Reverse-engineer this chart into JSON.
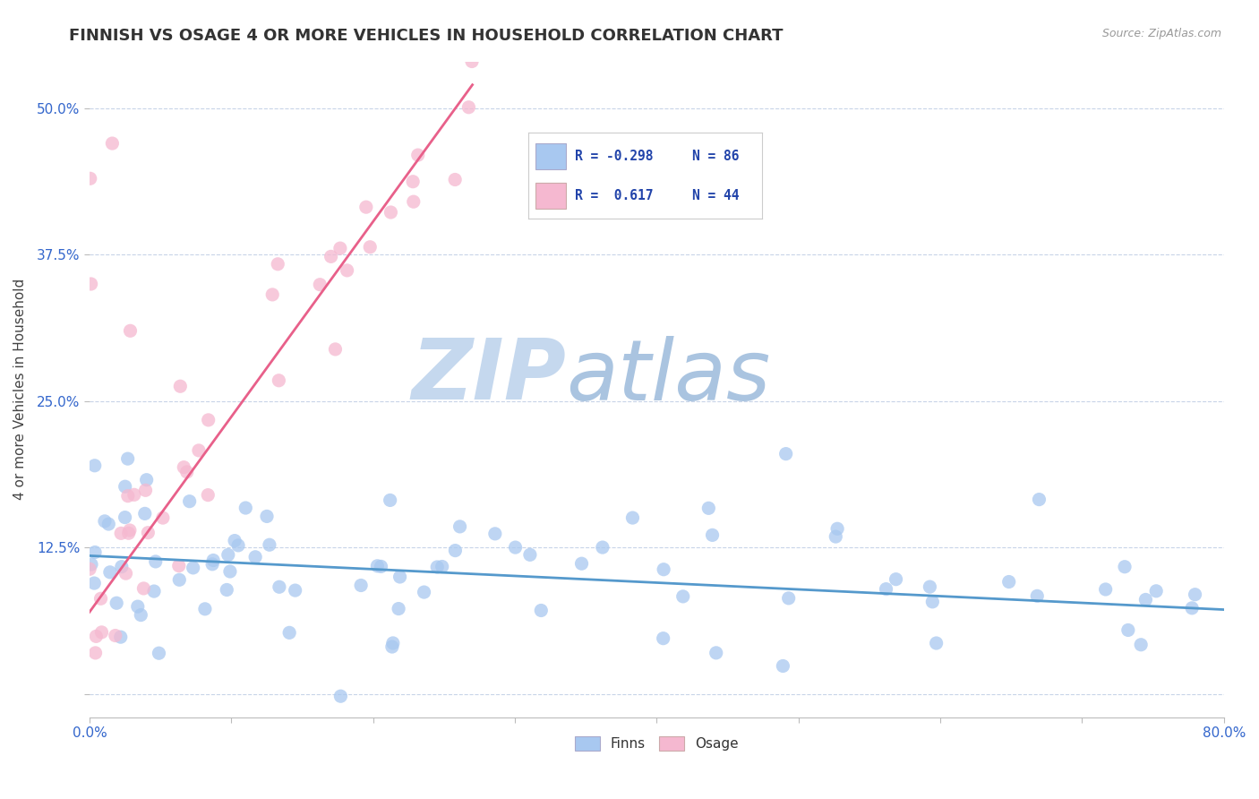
{
  "title": "FINNISH VS OSAGE 4 OR MORE VEHICLES IN HOUSEHOLD CORRELATION CHART",
  "source_text": "Source: ZipAtlas.com",
  "ylabel": "4 or more Vehicles in Household",
  "xlim": [
    0.0,
    0.8
  ],
  "ylim": [
    -0.02,
    0.54
  ],
  "finns_color": "#a8c8f0",
  "osage_color": "#f5b8d0",
  "finns_line_color": "#5599cc",
  "osage_line_color": "#e8608a",
  "watermark_zip": "ZIP",
  "watermark_atlas": "atlas",
  "watermark_color_zip": "#c8d8ec",
  "watermark_color_atlas": "#b8cce4",
  "legend_text_color": "#2244aa",
  "finns_R": "-0.298",
  "finns_N": "86",
  "osage_R": "0.617",
  "osage_N": "44",
  "finns_line_x0": 0.0,
  "finns_line_x1": 0.8,
  "finns_line_y0": 0.118,
  "finns_line_y1": 0.072,
  "osage_line_x0": 0.0,
  "osage_line_x1": 0.27,
  "osage_line_y0": 0.07,
  "osage_line_y1": 0.52
}
